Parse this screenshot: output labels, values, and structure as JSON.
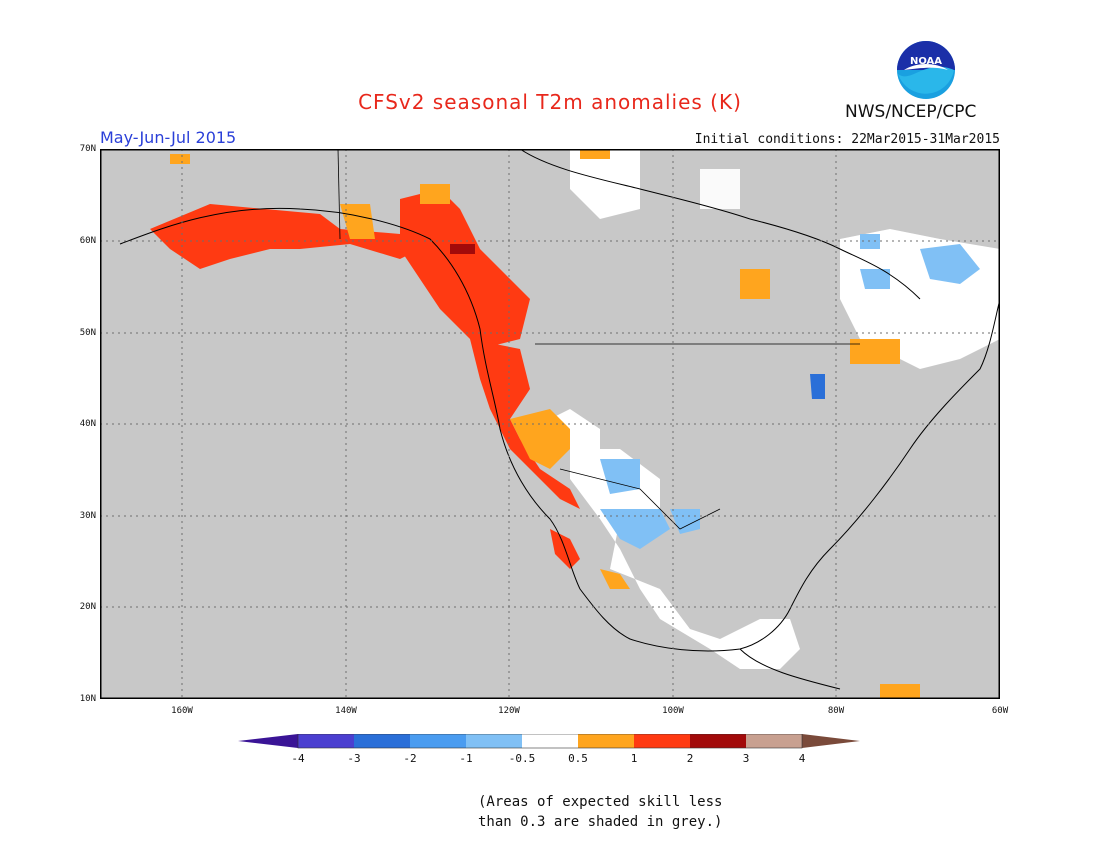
{
  "title": "CFSv2 seasonal T2m anomalies (K)",
  "period": "May-Jun-Jul 2015",
  "initial_conditions": "Initial conditions: 22Mar2015-31Mar2015",
  "agency": "NWS/NCEP/CPC",
  "logo_text": "NOAA",
  "lat_labels": [
    "70N",
    "60N",
    "50N",
    "40N",
    "30N",
    "20N",
    "10N"
  ],
  "lon_labels": [
    "160W",
    "140W",
    "120W",
    "100W",
    "80W",
    "60W"
  ],
  "legend": {
    "labels": [
      "-4",
      "-3",
      "-2",
      "-1",
      "-0.5",
      "0.5",
      "1",
      "2",
      "3",
      "4"
    ],
    "colors": {
      "below_-4": "#3a1496",
      "-4_-3": "#4b3fd0",
      "-3_-2": "#2a6fd8",
      "-2_-1": "#4a9cf0",
      "-1_-0.5": "#80c0f5",
      "-0.5_0.5": "#ffffff",
      "0.5_1": "#ffa51e",
      "1_2": "#ff3a12",
      "2_3": "#a20a0a",
      "3_4": "#c8a090",
      "above_4": "#7a4a3a"
    }
  },
  "colors": {
    "land": "#ffffff",
    "low_skill": "#c8c8c8",
    "ocean": "#c8c8c8"
  },
  "note_lines": [
    "(Areas of expected skill less",
    "than 0.3 are shaded in grey.)"
  ]
}
